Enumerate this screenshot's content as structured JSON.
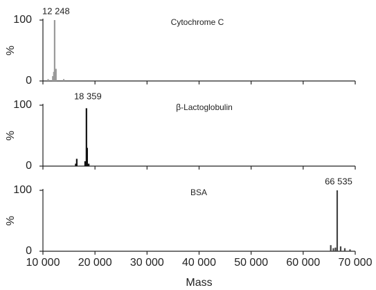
{
  "chart_data": [
    {
      "type": "stem",
      "title": "Cytochrome C",
      "xlim": [
        10000,
        70000
      ],
      "xticks": [
        10000,
        20000,
        30000,
        40000,
        50000,
        60000,
        70000
      ],
      "ylim": [
        0,
        100
      ],
      "yticks": [
        0,
        100
      ],
      "ylabel": "%",
      "color": "#9a9a9a",
      "x": [
        11000,
        11900,
        12100,
        12248,
        12500,
        14000
      ],
      "values": [
        3,
        8,
        15,
        100,
        20,
        3
      ],
      "annotations": [
        {
          "value": 12248,
          "label": "12 248"
        }
      ]
    },
    {
      "type": "stem",
      "title": "β-Lactoglobulin",
      "xlim": [
        10000,
        70000
      ],
      "xticks": [
        10000,
        20000,
        30000,
        40000,
        50000,
        60000,
        70000
      ],
      "ylim": [
        0,
        100
      ],
      "yticks": [
        0,
        100
      ],
      "ylabel": "%",
      "color": "#111111",
      "x": [
        16300,
        16500,
        18100,
        18359,
        18500,
        18800
      ],
      "values": [
        4,
        12,
        8,
        95,
        30,
        4
      ],
      "annotations": [
        {
          "value": 18359,
          "label": "18 359"
        }
      ]
    },
    {
      "type": "stem",
      "title": "BSA",
      "xlim": [
        10000,
        70000
      ],
      "xlabel": "Mass",
      "xticks": [
        {
          "value": 10000,
          "label": "10 000"
        },
        {
          "value": 20000,
          "label": "20 000"
        },
        {
          "value": 30000,
          "label": "30 000"
        },
        {
          "value": 40000,
          "label": "40 000"
        },
        {
          "value": 50000,
          "label": "50 000"
        },
        {
          "value": 60000,
          "label": "60 000"
        },
        {
          "value": 70000,
          "label": "70 000"
        }
      ],
      "ylim": [
        0,
        100
      ],
      "yticks": [
        0,
        100
      ],
      "ylabel": "%",
      "color": "#444444",
      "x": [
        65300,
        65800,
        66200,
        66535,
        67200,
        68000,
        69000
      ],
      "values": [
        10,
        5,
        6,
        100,
        8,
        5,
        3
      ],
      "annotations": [
        {
          "value": 66535,
          "label": "66 535"
        }
      ]
    }
  ]
}
